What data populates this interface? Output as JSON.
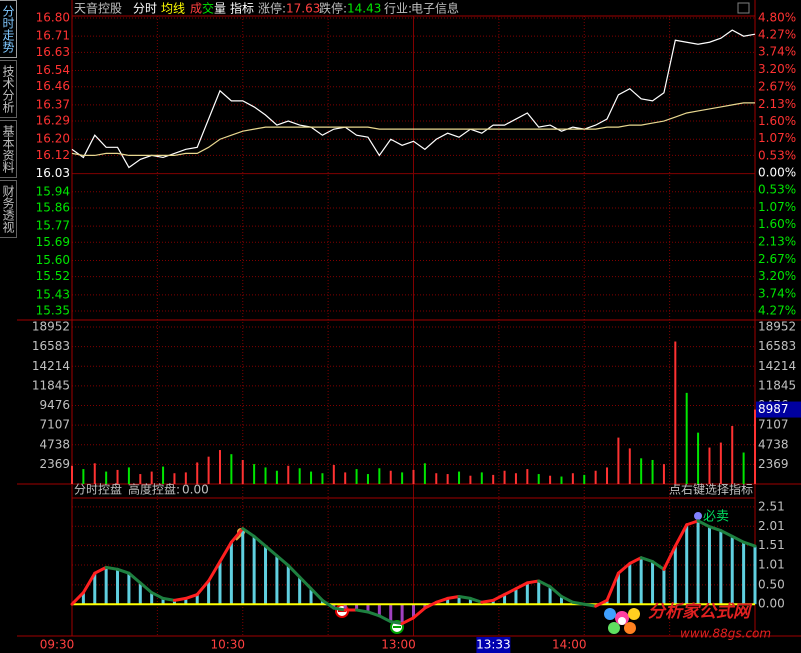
{
  "tabs": [
    "分时走势",
    "技术分析",
    "基本资料",
    "财务透视"
  ],
  "header": {
    "stock": "天音控股",
    "menu": [
      "分时",
      "均线"
    ],
    "volume_parts": [
      "成",
      "交",
      "量"
    ],
    "indicator": "指标",
    "limit_up_label": "涨停:",
    "limit_up": "17.63",
    "limit_down_label": "跌停:",
    "limit_down": "14.43",
    "industry_label": "行业:",
    "industry": "电子信息"
  },
  "time_axis": {
    "xlim": [
      0,
      240
    ],
    "xticks": [
      {
        "value": 0,
        "label": "09:30"
      },
      {
        "value": 60,
        "label": "10:30"
      },
      {
        "value": 120,
        "label": "13:00"
      },
      {
        "value": 180,
        "label": "14:00"
      }
    ],
    "cursor": {
      "value": 153,
      "label": "13:33"
    }
  },
  "chart_data": [
    {
      "type": "line",
      "series": [
        {
          "color": "#ffffff",
          "values": [
            16.15,
            16.11,
            16.22,
            16.16,
            16.16,
            16.06,
            16.1,
            16.12,
            16.11,
            16.13,
            16.15,
            16.16,
            16.3,
            16.44,
            16.39,
            16.39,
            16.36,
            16.32,
            16.27,
            16.29,
            16.27,
            16.26,
            16.22,
            16.25,
            16.26,
            16.22,
            16.21,
            16.12,
            16.2,
            16.17,
            16.19,
            16.15,
            16.2,
            16.23,
            16.21,
            16.25,
            16.23,
            16.27,
            16.27,
            16.3,
            16.33,
            16.26,
            16.27,
            16.24,
            16.26,
            16.25,
            16.27,
            16.3,
            16.42,
            16.45,
            16.4,
            16.39,
            16.43,
            16.69,
            16.68,
            16.67,
            16.68,
            16.7,
            16.74,
            16.71,
            16.72
          ]
        },
        {
          "color": "#e8d890",
          "values": [
            16.13,
            16.12,
            16.12,
            16.13,
            16.13,
            16.12,
            16.12,
            16.12,
            16.12,
            16.12,
            16.13,
            16.13,
            16.16,
            16.2,
            16.22,
            16.24,
            16.25,
            16.26,
            16.26,
            16.26,
            16.26,
            16.26,
            16.26,
            16.26,
            16.26,
            16.26,
            16.26,
            16.25,
            16.25,
            16.25,
            16.25,
            16.25,
            16.25,
            16.25,
            16.25,
            16.25,
            16.25,
            16.25,
            16.25,
            16.25,
            16.25,
            16.25,
            16.25,
            16.25,
            16.25,
            16.25,
            16.25,
            16.26,
            16.26,
            16.27,
            16.27,
            16.28,
            16.29,
            16.31,
            16.33,
            16.34,
            16.35,
            16.36,
            16.37,
            16.38,
            16.38
          ]
        }
      ],
      "ylim": [
        15.35,
        16.8
      ],
      "yticks": [
        {
          "value": 16.8,
          "label": "16.80"
        },
        16.71,
        16.63,
        16.54,
        16.46,
        16.37,
        16.29,
        {
          "value": 16.2,
          "label": "16.20"
        },
        16.12,
        16.03,
        15.94,
        15.86,
        15.77,
        15.69,
        {
          "value": 15.6,
          "label": "15.60"
        },
        15.52,
        15.43,
        15.35
      ],
      "y2lim": [
        -4.27,
        4.8
      ],
      "y2ticks": [
        {
          "value": 4.8,
          "label": "4.80%"
        },
        {
          "value": 4.27,
          "label": "4.27%"
        },
        {
          "value": 3.74,
          "label": "3.74%"
        },
        {
          "value": 3.2,
          "label": "3.20%"
        },
        {
          "value": 2.67,
          "label": "2.67%"
        },
        {
          "value": 2.13,
          "label": "2.13%"
        },
        {
          "value": 1.6,
          "label": "1.60%"
        },
        {
          "value": 1.07,
          "label": "1.07%"
        },
        {
          "value": 0.53,
          "label": "0.53%"
        },
        {
          "value": 0,
          "label": "0.00%"
        },
        {
          "value": -0.53,
          "label": "0.53%"
        },
        {
          "value": -1.07,
          "label": "1.07%"
        },
        {
          "value": -1.6,
          "label": "1.60%"
        },
        {
          "value": -2.13,
          "label": "2.13%"
        },
        {
          "value": -2.67,
          "label": "2.67%"
        },
        {
          "value": -3.2,
          "label": "3.20%"
        },
        {
          "value": -3.74,
          "label": "3.74%"
        },
        {
          "value": -4.27,
          "label": "4.27%"
        }
      ],
      "up_color": "#ff3232",
      "down_color": "#00e600",
      "flat_color": "#ffffff"
    },
    {
      "type": "bar",
      "values": [
        2200,
        1800,
        2500,
        1500,
        1700,
        2000,
        1200,
        1500,
        2100,
        1300,
        1400,
        2600,
        3300,
        4100,
        3600,
        2900,
        2400,
        2000,
        1600,
        2200,
        1900,
        1500,
        1300,
        2300,
        1400,
        1800,
        1200,
        1900,
        1600,
        1400,
        1700,
        2500,
        1300,
        1200,
        1500,
        1000,
        1400,
        1100,
        1600,
        1300,
        1800,
        1200,
        1000,
        900,
        1300,
        1100,
        1600,
        2000,
        5600,
        4300,
        3100,
        2900,
        2400,
        17200,
        11000,
        6200,
        4400,
        5000,
        7000,
        3800,
        8987
      ],
      "ylim": [
        0,
        18952
      ],
      "yticks": [
        2369,
        4738,
        7107,
        9476,
        11845,
        14214,
        16583,
        18952
      ],
      "current": 8987,
      "up_color": "#ff3232",
      "down_color": "#00e600"
    },
    {
      "type": "indicator",
      "title": "分时控盘",
      "label": "高度控盘:",
      "value_text": "0.00",
      "hint": "点右键选择指标",
      "signal": "必卖",
      "values": [
        0,
        0.3,
        0.8,
        0.95,
        0.9,
        0.8,
        0.55,
        0.3,
        0.15,
        0.1,
        0.15,
        0.25,
        0.6,
        1.1,
        1.6,
        1.95,
        1.75,
        1.5,
        1.25,
        1.0,
        0.7,
        0.4,
        0.1,
        -0.1,
        -0.15,
        -0.15,
        -0.2,
        -0.3,
        -0.45,
        -0.5,
        -0.35,
        -0.1,
        0.05,
        0.15,
        0.2,
        0.15,
        0.05,
        0.1,
        0.25,
        0.4,
        0.55,
        0.6,
        0.45,
        0.2,
        0.05,
        0,
        -0.05,
        0.1,
        0.8,
        1.05,
        1.2,
        1.1,
        0.9,
        1.5,
        2.05,
        2.15,
        2.0,
        1.9,
        1.75,
        1.6,
        1.5
      ],
      "ylim": [
        -0.82,
        2.74
      ],
      "yticks": [
        {
          "value": 0,
          "label": "0.00"
        },
        {
          "value": 0.5,
          "label": "0.50"
        },
        1.01,
        1.51,
        2.01,
        2.51
      ],
      "up_color": "#ff2020",
      "down_color": "#1e8040",
      "bar_color": "#60d0e0",
      "neg_bar_color": "#a040c0",
      "zero_color": "#ffff00"
    }
  ],
  "watermark": {
    "name": "分析家公式网",
    "url": "www.88gs.com"
  }
}
